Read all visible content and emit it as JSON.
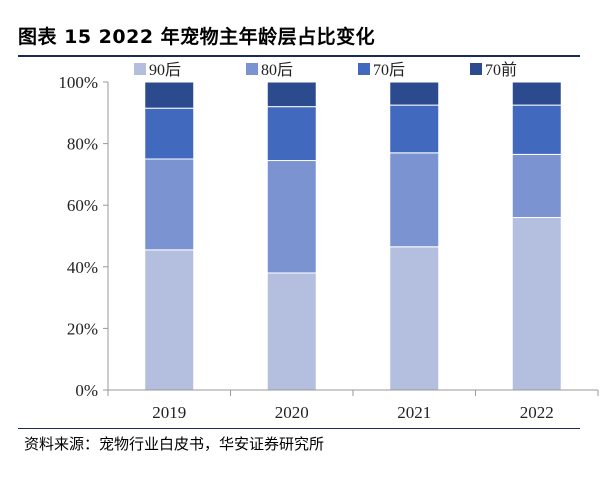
{
  "title": "图表 15 2022 年宠物主年龄层占比变化",
  "source": "资料来源：宠物行业白皮书，华安证券研究所",
  "chart_data": {
    "type": "bar",
    "stacked": true,
    "categories": [
      "2019",
      "2020",
      "2021",
      "2022"
    ],
    "series": [
      {
        "name": "90后",
        "color": "#b4bfdf",
        "values": [
          45.5,
          38.0,
          46.5,
          56.0
        ]
      },
      {
        "name": "80后",
        "color": "#7b93d0",
        "values": [
          29.5,
          36.5,
          30.5,
          20.5
        ]
      },
      {
        "name": "70后",
        "color": "#4169bd",
        "values": [
          16.5,
          17.5,
          15.5,
          16.0
        ]
      },
      {
        "name": "70前",
        "color": "#2c4b8e",
        "values": [
          8.5,
          8.0,
          7.5,
          7.5
        ]
      }
    ],
    "ylim": [
      0,
      100
    ],
    "yticks": [
      "0%",
      "20%",
      "40%",
      "60%",
      "80%",
      "100%"
    ],
    "legend_position": "top",
    "grid": false
  }
}
